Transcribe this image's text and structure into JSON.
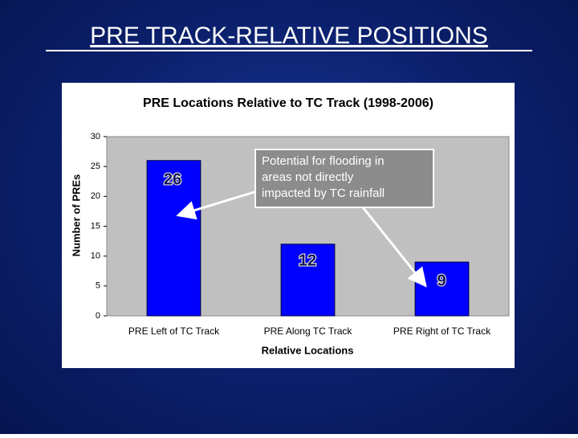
{
  "slide": {
    "title": "PRE TRACK-RELATIVE POSITIONS"
  },
  "chart_data": {
    "type": "bar",
    "title": "PRE Locations Relative to TC Track (1998-2006)",
    "x_label": "Relative Locations",
    "y_label": "Number of PREs",
    "categories": [
      "PRE Left of TC Track",
      "PRE Along TC Track",
      "PRE Right of TC Track"
    ],
    "values": [
      26,
      12,
      9
    ],
    "color": "#0000ff",
    "ylim": [
      0,
      30
    ],
    "yticks": [
      0,
      5,
      10,
      15,
      20,
      25,
      30
    ],
    "annotation_lines": [
      "Potential for flooding in",
      "areas not directly",
      "impacted by TC rainfall"
    ]
  }
}
